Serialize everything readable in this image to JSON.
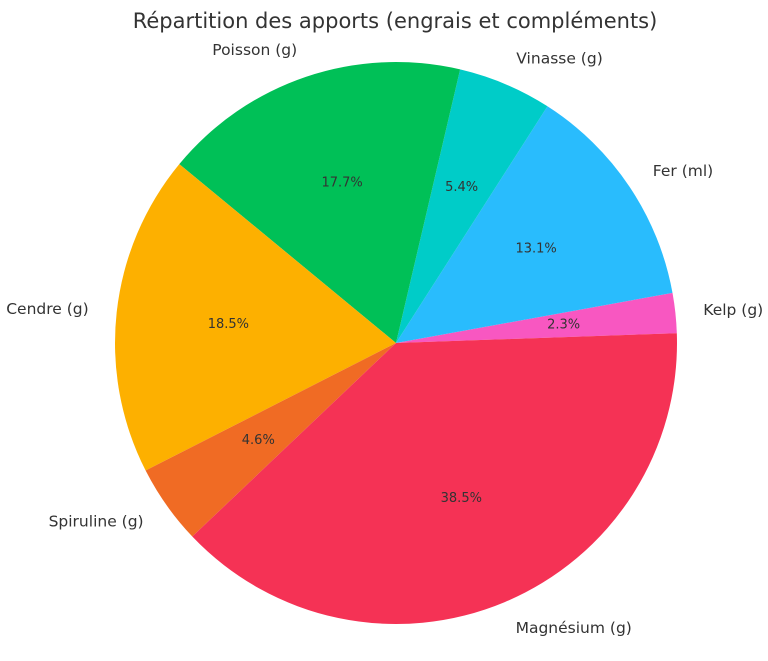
{
  "chart_data": {
    "type": "pie",
    "title": "Répartition des apports (engrais et compléments)",
    "start_angle_deg": 2,
    "direction": "counterclockwise",
    "slices": [
      {
        "label": "Kelp (g)",
        "percent_label": "2.3%",
        "value": 2.3,
        "color": "#f857c1"
      },
      {
        "label": "Fer (ml)",
        "percent_label": "13.1%",
        "value": 13.1,
        "color": "#29bcfd"
      },
      {
        "label": "Vinasse (g)",
        "percent_label": "5.4%",
        "value": 5.4,
        "color": "#00ccc8"
      },
      {
        "label": "Poisson (g)",
        "percent_label": "17.7%",
        "value": 17.7,
        "color": "#00c057"
      },
      {
        "label": "Cendre (g)",
        "percent_label": "18.5%",
        "value": 18.5,
        "color": "#fdb000"
      },
      {
        "label": "Spiruline (g)",
        "percent_label": "4.6%",
        "value": 4.6,
        "color": "#f06b24"
      },
      {
        "label": "Magnésium (g)",
        "percent_label": "38.5%",
        "value": 38.5,
        "color": "#f53255"
      }
    ]
  }
}
